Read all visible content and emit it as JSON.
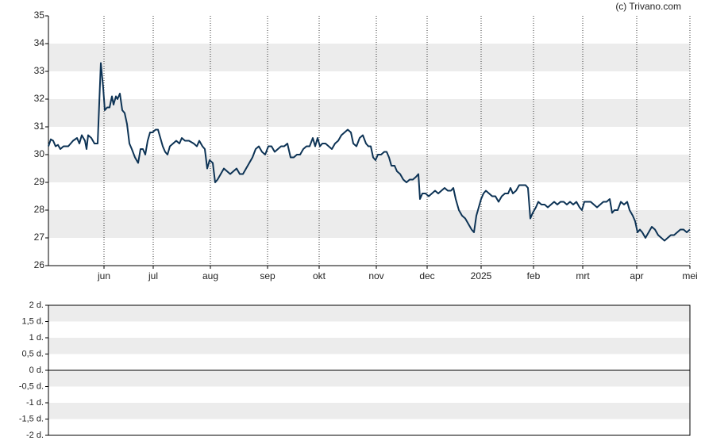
{
  "chart_data": [
    {
      "type": "line",
      "annotation": "(c) Trivano.com",
      "x": [
        0,
        0.75,
        1.5,
        2.25,
        3,
        3.75,
        4.75,
        6.25,
        7.75,
        9,
        9.75,
        10.5,
        11.5,
        12,
        12.5,
        13.5,
        14.5,
        15.5,
        16.5,
        17.25,
        17.75,
        18.5,
        19.25,
        20,
        20.5,
        21.25,
        21.75,
        22.5,
        23.25,
        24,
        24.75,
        25.5,
        26.25,
        27.25,
        28.25,
        29,
        29.75,
        30.5,
        31.25,
        32,
        32.75,
        33.75,
        34.5,
        35.25,
        36,
        36.75,
        37.5,
        38.25,
        39.25,
        40.25,
        41.25,
        42,
        43,
        44.25,
        45.75,
        46.75,
        47.5,
        48.5,
        49.25,
        50,
        50.75,
        51.75,
        52.5,
        53.25,
        54.25,
        55.25,
        56.25,
        57.25,
        58.25,
        59.25,
        60.25,
        61.25,
        62.25,
        63.25,
        64.25,
        65.25,
        66.25,
        67.25,
        68.25,
        69.25,
        70.25,
        71.25,
        72.25,
        73.25,
        74.25,
        75.25,
        76.25,
        77.25,
        78.25,
        79.25,
        80.25,
        81.25,
        82.25,
        83.25,
        84,
        84.75,
        85.5,
        86.25,
        87.25,
        88.25,
        89.25,
        90.25,
        91.25,
        92.25,
        93.25,
        94.25,
        95.25,
        96,
        97,
        98,
        99,
        100,
        100.75,
        101.5,
        102.25,
        103,
        103.75,
        104.75,
        105.75,
        106.5,
        107.25,
        108,
        109,
        109.75,
        110.75,
        111.75,
        112.75,
        113.75,
        114.75,
        115.75,
        116.5,
        117,
        117.75,
        118.75,
        119.75,
        120.75,
        121.75,
        122.75,
        123.75,
        124.75,
        125.75,
        126.75,
        127.5,
        128.25,
        129.25,
        130.25,
        131.25,
        132.25,
        133.25,
        134,
        134.75,
        135.5,
        136.25,
        137,
        137.75,
        138.75,
        139.75,
        140.75,
        141.75,
        142.75,
        143.75,
        144.75,
        145.5,
        146.25,
        147.25,
        148.25,
        149.25,
        150.25,
        151,
        151.75,
        152.5,
        153.5,
        154.25,
        155.25,
        156.25,
        157.25,
        158.25,
        159.25,
        160.25,
        161.25,
        162.25,
        163.25,
        164.25,
        165.25,
        166.25,
        167.25,
        168,
        168.75,
        169.75,
        170.75,
        171.75,
        172.75,
        173.75,
        174.75,
        175.75,
        176.75,
        177.5,
        178.25,
        179.25,
        180.25,
        181.25,
        182.25,
        183,
        184,
        184.75,
        185.5,
        186.25,
        187,
        188,
        189,
        190,
        191,
        192,
        193,
        194,
        195,
        196,
        197,
        198,
        199,
        200,
        201,
        202
      ],
      "series": [
        {
          "color": "#0d3355",
          "values": [
            30.3,
            30.55,
            30.5,
            30.3,
            30.35,
            30.2,
            30.3,
            30.3,
            30.5,
            30.6,
            30.4,
            30.7,
            30.5,
            30.2,
            30.7,
            30.6,
            30.4,
            30.4,
            33.3,
            32.4,
            31.6,
            31.7,
            31.7,
            32.1,
            31.8,
            32.1,
            32.0,
            32.2,
            31.6,
            31.5,
            31.1,
            30.4,
            30.2,
            29.9,
            29.7,
            30.2,
            30.2,
            30.0,
            30.5,
            30.8,
            30.8,
            30.9,
            30.9,
            30.6,
            30.3,
            30.1,
            30.0,
            30.3,
            30.4,
            30.5,
            30.4,
            30.6,
            30.5,
            30.5,
            30.4,
            30.3,
            30.5,
            30.3,
            30.2,
            29.5,
            29.8,
            29.7,
            29.0,
            29.1,
            29.3,
            29.5,
            29.4,
            29.3,
            29.4,
            29.5,
            29.3,
            29.3,
            29.5,
            29.7,
            29.9,
            30.2,
            30.3,
            30.1,
            30.0,
            30.3,
            30.3,
            30.1,
            30.2,
            30.3,
            30.3,
            30.4,
            29.9,
            29.9,
            30.0,
            30.0,
            30.2,
            30.3,
            30.3,
            30.6,
            30.3,
            30.6,
            30.3,
            30.4,
            30.4,
            30.3,
            30.2,
            30.4,
            30.5,
            30.7,
            30.8,
            30.9,
            30.8,
            30.4,
            30.3,
            30.6,
            30.7,
            30.4,
            30.3,
            30.3,
            29.9,
            29.8,
            30.0,
            30.0,
            30.1,
            30.1,
            29.9,
            29.6,
            29.6,
            29.4,
            29.3,
            29.1,
            29.0,
            29.1,
            29.1,
            29.2,
            29.3,
            28.4,
            28.6,
            28.6,
            28.5,
            28.6,
            28.7,
            28.6,
            28.7,
            28.8,
            28.7,
            28.7,
            28.8,
            28.4,
            28.0,
            27.8,
            27.7,
            27.5,
            27.3,
            27.2,
            27.8,
            28.1,
            28.4,
            28.6,
            28.7,
            28.6,
            28.5,
            28.5,
            28.3,
            28.5,
            28.6,
            28.6,
            28.8,
            28.6,
            28.7,
            28.9,
            28.9,
            28.9,
            28.8,
            27.7,
            27.9,
            28.1,
            28.3,
            28.2,
            28.2,
            28.1,
            28.2,
            28.3,
            28.2,
            28.3,
            28.3,
            28.2,
            28.3,
            28.2,
            28.3,
            28.1,
            28.0,
            28.3,
            28.3,
            28.3,
            28.2,
            28.1,
            28.2,
            28.3,
            28.3,
            28.4,
            27.9,
            28.0,
            28.0,
            28.3,
            28.2,
            28.3,
            28.0,
            27.8,
            27.6,
            27.2,
            27.3,
            27.2,
            27.0,
            27.2,
            27.4,
            27.3,
            27.1,
            27.0,
            26.9,
            27.0,
            27.1,
            27.1,
            27.2,
            27.3,
            27.3,
            27.2,
            27.3
          ]
        }
      ],
      "xlim": [
        0,
        202
      ],
      "xticks": [
        {
          "value": 17.5,
          "label": "jun"
        },
        {
          "value": 33,
          "label": "jul"
        },
        {
          "value": 51,
          "label": "aug"
        },
        {
          "value": 69,
          "label": "sep"
        },
        {
          "value": 85.25,
          "label": "okt"
        },
        {
          "value": 103.25,
          "label": "nov"
        },
        {
          "value": 119.25,
          "label": "dec"
        },
        {
          "value": 136.25,
          "label": "2025"
        },
        {
          "value": 152.75,
          "label": "feb"
        },
        {
          "value": 168.25,
          "label": "mrt"
        },
        {
          "value": 185.25,
          "label": "apr"
        },
        {
          "value": 202,
          "label": "mei"
        }
      ],
      "ylim": [
        26,
        35
      ],
      "yticks": [
        26,
        27,
        28,
        29,
        30,
        31,
        32,
        33,
        34,
        35
      ],
      "grid": true
    },
    {
      "type": "line",
      "series": [],
      "ylim": [
        -2,
        2
      ],
      "yticks": [
        {
          "value": -2,
          "label": "-2 d."
        },
        {
          "value": -1.5,
          "label": "-1,5 d."
        },
        {
          "value": -1,
          "label": "-1 d."
        },
        {
          "value": -0.5,
          "label": "-0,5 d."
        },
        {
          "value": 0,
          "label": "0 d."
        },
        {
          "value": 0.5,
          "label": "0,5 d."
        },
        {
          "value": 1,
          "label": "1 d."
        },
        {
          "value": 1.5,
          "label": "1,5 d."
        },
        {
          "value": 2,
          "label": "2 d."
        }
      ],
      "grid": true
    }
  ]
}
